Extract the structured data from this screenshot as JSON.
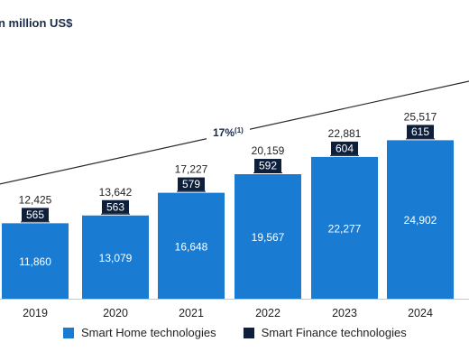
{
  "chart_data": {
    "type": "bar",
    "stacked": true,
    "unit_label": "n million US$",
    "categories": [
      "2019",
      "2020",
      "2021",
      "2022",
      "2023",
      "2024"
    ],
    "series": [
      {
        "name": "Smart Home technologies",
        "values": [
          11860,
          13079,
          16648,
          19567,
          22277,
          24902
        ],
        "color": "#1a7bd3"
      },
      {
        "name": "Smart Finance technologies",
        "values": [
          565,
          563,
          579,
          592,
          604,
          615
        ],
        "color": "#0e1f3b"
      }
    ],
    "totals": [
      "12,425",
      "13,642",
      "17,227",
      "20,159",
      "22,881",
      "25,517"
    ],
    "value_labels": {
      "home": [
        "11,860",
        "13,079",
        "16,648",
        "19,567",
        "22,277",
        "24,902"
      ],
      "finance": [
        "565",
        "563",
        "579",
        "592",
        "604",
        "615"
      ]
    },
    "trend_annotation": {
      "label": "17%",
      "superscript": "(1)"
    },
    "legend_position": "bottom",
    "grid": false
  }
}
